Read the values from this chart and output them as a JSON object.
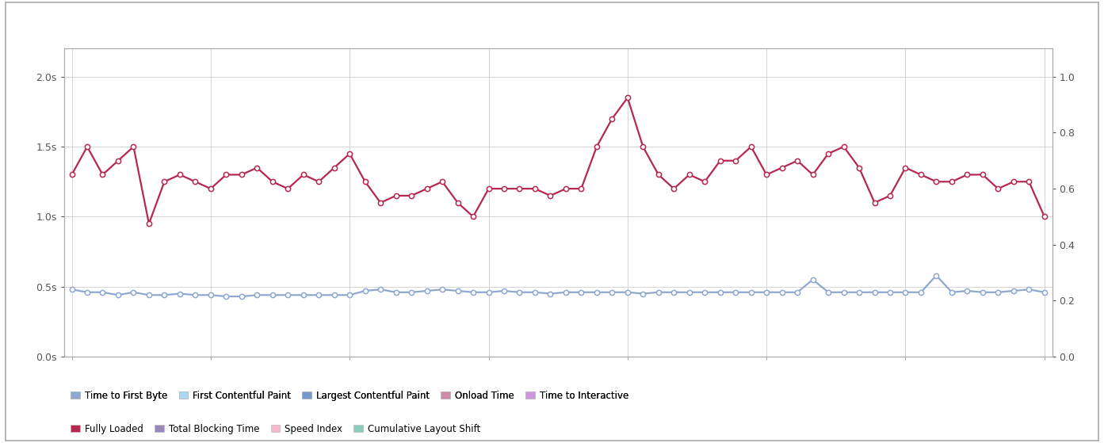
{
  "fully_loaded": [
    1.3,
    1.5,
    1.3,
    1.4,
    1.5,
    0.95,
    1.25,
    1.3,
    1.25,
    1.2,
    1.3,
    1.3,
    1.35,
    1.25,
    1.2,
    1.3,
    1.25,
    1.35,
    1.45,
    1.25,
    1.1,
    1.15,
    1.15,
    1.2,
    1.25,
    1.1,
    1.0,
    1.2,
    1.2,
    1.2,
    1.2,
    1.15,
    1.2,
    1.2,
    1.5,
    1.7,
    1.85,
    1.5,
    1.3,
    1.2,
    1.3,
    1.25,
    1.4,
    1.4,
    1.5,
    1.3,
    1.35,
    1.4,
    1.3,
    1.45,
    1.5,
    1.35,
    1.1,
    1.15,
    1.35,
    1.3,
    1.25,
    1.25,
    1.3,
    1.3,
    1.2,
    1.25,
    1.25,
    1.0
  ],
  "ttfb": [
    0.48,
    0.46,
    0.46,
    0.44,
    0.46,
    0.44,
    0.44,
    0.45,
    0.44,
    0.44,
    0.43,
    0.43,
    0.44,
    0.44,
    0.44,
    0.44,
    0.44,
    0.44,
    0.44,
    0.47,
    0.48,
    0.46,
    0.46,
    0.47,
    0.48,
    0.47,
    0.46,
    0.46,
    0.47,
    0.46,
    0.46,
    0.45,
    0.46,
    0.46,
    0.46,
    0.46,
    0.46,
    0.45,
    0.46,
    0.46,
    0.46,
    0.46,
    0.46,
    0.46,
    0.46,
    0.46,
    0.46,
    0.46,
    0.55,
    0.46,
    0.46,
    0.46,
    0.46,
    0.46,
    0.46,
    0.46,
    0.58,
    0.46,
    0.47,
    0.46,
    0.46,
    0.47,
    0.48,
    0.46
  ],
  "fl_color": "#b5294e",
  "ttfb_color": "#8fa8d0",
  "fl_marker_facecolor": "#ffffff",
  "fl_marker_edge": "#b5294e",
  "ttfb_marker_facecolor": "#ffffff",
  "ttfb_marker_edge": "#8fa8d0",
  "background_color": "#ffffff",
  "plot_bg_color": "#ffffff",
  "grid_color": "#d0d0d0",
  "left_ylim": [
    0.0,
    2.2
  ],
  "right_ylim": [
    0.0,
    1.1
  ],
  "left_yticks": [
    0.0,
    0.5,
    1.0,
    1.5,
    2.0
  ],
  "left_yticklabels": [
    "0.0s",
    "0.5s",
    "1.0s",
    "1.5s",
    "2.0s"
  ],
  "right_yticks": [
    0.0,
    0.2,
    0.4,
    0.6,
    0.8,
    1.0
  ],
  "right_yticklabels": [
    "0.0",
    "0.2",
    "0.4",
    "0.6",
    "0.8",
    "1.0"
  ],
  "legend_row1": [
    {
      "label": "Time to First Byte",
      "color": "#8fa8d0"
    },
    {
      "label": "First Contentful Paint",
      "color": "#a8d8f0"
    },
    {
      "label": "Largest Contentful Paint",
      "color": "#7799cc"
    },
    {
      "label": "Onload Time",
      "color": "#d08aaa"
    },
    {
      "label": "Time to Interactive",
      "color": "#cc99dd"
    }
  ],
  "legend_row2": [
    {
      "label": "Fully Loaded",
      "color": "#b5294e"
    },
    {
      "label": "Total Blocking Time",
      "color": "#9988bb"
    },
    {
      "label": "Speed Index",
      "color": "#f7b8cc"
    },
    {
      "label": "Cumulative Layout Shift",
      "color": "#88ccbb"
    }
  ],
  "border_color": "#aaaaaa",
  "top_bar_color": "#4a6fa5",
  "marker_size": 4.5,
  "linewidth": 1.6
}
